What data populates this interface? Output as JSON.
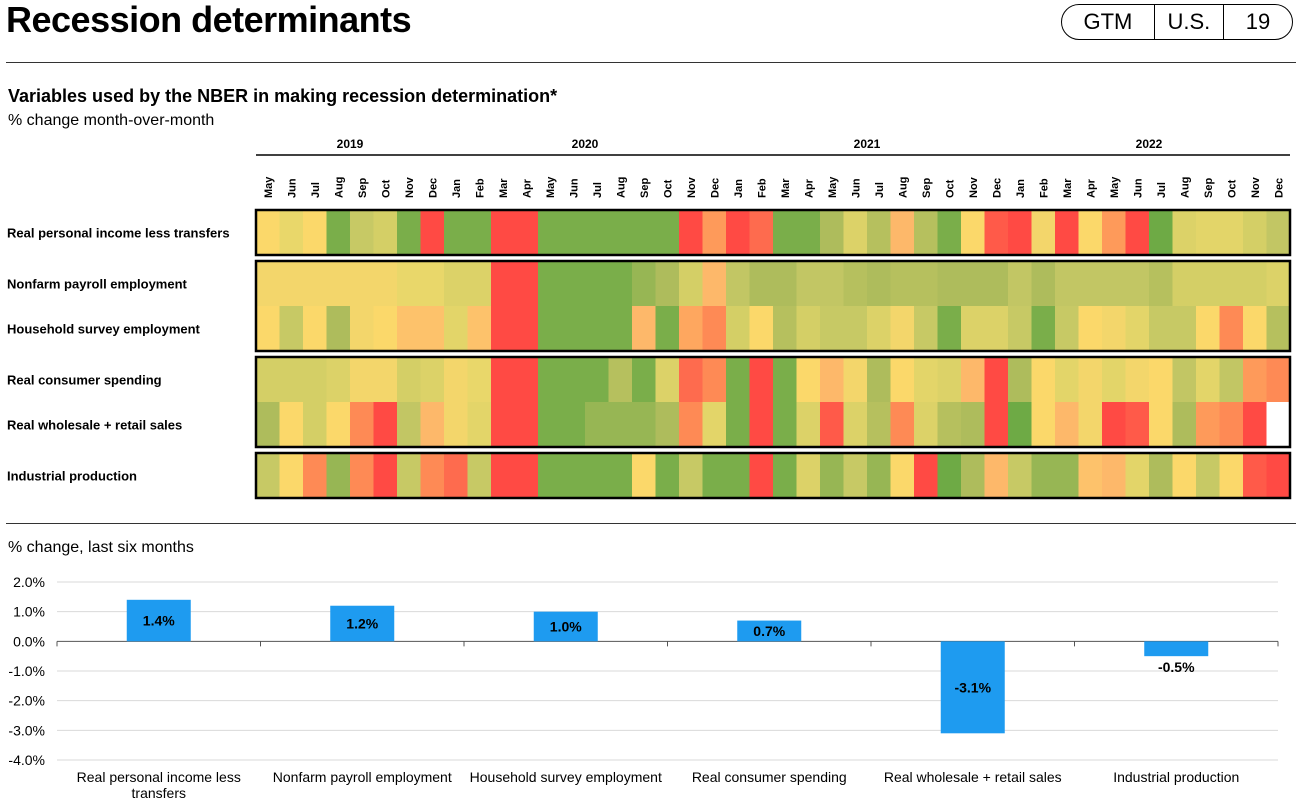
{
  "header": {
    "title": "Recession determinants",
    "badge": [
      "GTM",
      "U.S.",
      "19"
    ]
  },
  "heatmap": {
    "title": "Variables used by the NBER in making recession determination*",
    "unit": "% change month-over-month",
    "years": [
      {
        "label": "2019",
        "start": 0,
        "end": 7
      },
      {
        "label": "2020",
        "start": 8,
        "end": 19
      },
      {
        "label": "2021",
        "start": 20,
        "end": 31
      },
      {
        "label": "2022",
        "start": 32,
        "end": 43
      }
    ],
    "months": [
      "May",
      "Jun",
      "Jul",
      "Aug",
      "Sep",
      "Oct",
      "Nov",
      "Dec",
      "Jan",
      "Feb",
      "Mar",
      "Apr",
      "May",
      "Jun",
      "Jul",
      "Aug",
      "Sep",
      "Oct",
      "Nov",
      "Dec",
      "Jan",
      "Feb",
      "Mar",
      "Apr",
      "May",
      "Jun",
      "Jul",
      "Aug",
      "Sep",
      "Oct",
      "Nov",
      "Dec",
      "Jan",
      "Feb",
      "Mar",
      "Apr",
      "May",
      "Jun",
      "Jul",
      "Aug",
      "Sep",
      "Oct",
      "Nov",
      "Dec"
    ],
    "groups": [
      {
        "rows": [
          {
            "label": "Real personal income less transfers",
            "colors": [
              "#fbd86a",
              "#e9d76a",
              "#fbd86a",
              "#7aae4a",
              "#c7c965",
              "#d4cf66",
              "#7aae4a",
              "#ff4a44",
              "#7aae4a",
              "#7aae4a",
              "#ff4a44",
              "#ff4a44",
              "#7aae4a",
              "#7aae4a",
              "#7aae4a",
              "#7aae4a",
              "#7aae4a",
              "#7aae4a",
              "#ff4a44",
              "#fe9a5a",
              "#ff4a44",
              "#fe6b4e",
              "#7aae4a",
              "#7aae4a",
              "#aebc5c",
              "#dcd268",
              "#b6c05e",
              "#fdb86a",
              "#b6c05e",
              "#7aae4a",
              "#fbd86a",
              "#ff5a49",
              "#ff4a44",
              "#f3d66b",
              "#ff4a44",
              "#fbd86a",
              "#fe9a5a",
              "#ff4a44",
              "#6eaa45",
              "#dcd268",
              "#e3d569",
              "#e3d569",
              "#d4cf66",
              "#c2c664"
            ]
          }
        ]
      },
      {
        "rows": [
          {
            "label": "Nonfarm payroll employment",
            "colors": [
              "#f3d66b",
              "#f3d66b",
              "#f3d66b",
              "#f3d66b",
              "#f3d66b",
              "#f3d66b",
              "#e9d76a",
              "#e9d76a",
              "#dcd268",
              "#dcd268",
              "#ff4a44",
              "#ff4a44",
              "#7aae4a",
              "#7aae4a",
              "#7aae4a",
              "#7aae4a",
              "#97b654",
              "#aebc5c",
              "#d4cf66",
              "#fdb86a",
              "#c2c664",
              "#aebc5c",
              "#aebc5c",
              "#c2c664",
              "#c2c664",
              "#b6c05e",
              "#aebc5c",
              "#b6c05e",
              "#b6c05e",
              "#aebc5c",
              "#aebc5c",
              "#aebc5c",
              "#c2c664",
              "#aebc5c",
              "#c2c664",
              "#c2c664",
              "#c2c664",
              "#c2c664",
              "#b6c05e",
              "#d4cf66",
              "#d4cf66",
              "#d4cf66",
              "#d4cf66",
              "#dcd268"
            ]
          },
          {
            "label": "Household survey employment",
            "colors": [
              "#fbd86a",
              "#c7c965",
              "#fbd86a",
              "#aebc5c",
              "#f3d66b",
              "#fbd86a",
              "#fdc26b",
              "#fdc26b",
              "#e3d569",
              "#fdc26b",
              "#ff4a44",
              "#ff4a44",
              "#7aae4a",
              "#7aae4a",
              "#7aae4a",
              "#7aae4a",
              "#fdb86a",
              "#7aae4a",
              "#fea75f",
              "#fe8a55",
              "#d4cf66",
              "#fbd86a",
              "#b6c05e",
              "#d4cf66",
              "#c7c965",
              "#c7c965",
              "#dcd268",
              "#f3d66b",
              "#c7c965",
              "#7aae4a",
              "#dcd268",
              "#dcd268",
              "#c7c965",
              "#7aae4a",
              "#c7c965",
              "#fbd86a",
              "#f3d66b",
              "#e3d569",
              "#c7c965",
              "#c7c965",
              "#fbd86a",
              "#fe8a55",
              "#fbd86a",
              "#b6c05e"
            ]
          }
        ]
      },
      {
        "rows": [
          {
            "label": "Real consumer spending",
            "colors": [
              "#d4cf66",
              "#d4cf66",
              "#d4cf66",
              "#dcd268",
              "#f3d66b",
              "#f3d66b",
              "#d4cf66",
              "#dcd268",
              "#f3d66b",
              "#e9d76a",
              "#ff4a44",
              "#ff4a44",
              "#7aae4a",
              "#7aae4a",
              "#7aae4a",
              "#b6c05e",
              "#7aae4a",
              "#dcd268",
              "#fe6b4e",
              "#fe8a55",
              "#7aae4a",
              "#ff4a44",
              "#7aae4a",
              "#fbd86a",
              "#fdb86a",
              "#f3d66b",
              "#aebc5c",
              "#fbd86a",
              "#e3d569",
              "#dcd268",
              "#fdb86a",
              "#ff4a44",
              "#aebc5c",
              "#fbd86a",
              "#e3d569",
              "#f3d66b",
              "#e3d569",
              "#f3d66b",
              "#fbd86a",
              "#c2c664",
              "#e3d569",
              "#c2c664",
              "#fe9a5a",
              "#fe8a55"
            ]
          },
          {
            "label": "Real wholesale + retail sales",
            "colors": [
              "#aebc5c",
              "#fbd86a",
              "#d4cf66",
              "#fbd86a",
              "#fe8a55",
              "#ff4a44",
              "#c2c664",
              "#fdb86a",
              "#f3d66b",
              "#e3d569",
              "#ff4a44",
              "#ff4a44",
              "#7aae4a",
              "#7aae4a",
              "#97b654",
              "#97b654",
              "#97b654",
              "#aebc5c",
              "#fe8a55",
              "#e3d569",
              "#7aae4a",
              "#ff4a44",
              "#7aae4a",
              "#dcd268",
              "#ff5a49",
              "#dcd268",
              "#b6c05e",
              "#fe8a55",
              "#dcd268",
              "#b6c05e",
              "#aebc5c",
              "#ff4a44",
              "#6eaa45",
              "#fbd86a",
              "#fdb86a",
              "#f3d66b",
              "#ff4a44",
              "#ff5a49",
              "#fbd86a",
              "#aebc5c",
              "#fe9a5a",
              "#fe8a55",
              "#ff4a44",
              "#ffffff"
            ]
          }
        ]
      },
      {
        "rows": [
          {
            "label": "Industrial production",
            "colors": [
              "#c7c965",
              "#fbd86a",
              "#fe8a55",
              "#97b654",
              "#fe8a55",
              "#ff4a44",
              "#c7c965",
              "#fe8a55",
              "#fe6b4e",
              "#c7c965",
              "#ff4a44",
              "#ff4a44",
              "#7aae4a",
              "#7aae4a",
              "#7aae4a",
              "#7aae4a",
              "#fbd86a",
              "#7aae4a",
              "#c7c965",
              "#7aae4a",
              "#7aae4a",
              "#ff4a44",
              "#7aae4a",
              "#dcd268",
              "#97b654",
              "#c7c965",
              "#97b654",
              "#fbd86a",
              "#ff4a44",
              "#6eaa45",
              "#aebc5c",
              "#fdb86a",
              "#c7c965",
              "#97b654",
              "#97b654",
              "#fdc26b",
              "#fdb86a",
              "#e3d569",
              "#aebc5c",
              "#fbd86a",
              "#c7c965",
              "#fbd86a",
              "#ff5a49",
              "#ff4a44"
            ]
          }
        ]
      }
    ]
  },
  "chart_data": {
    "type": "bar",
    "unit_label": "% change, last six months",
    "categories": [
      "Real personal income less transfers",
      "Nonfarm payroll employment",
      "Household survey employment",
      "Real consumer spending",
      "Real wholesale + retail sales",
      "Industrial production"
    ],
    "values": [
      1.4,
      1.2,
      1.0,
      0.7,
      -3.1,
      -0.5
    ],
    "data_labels": [
      "1.4%",
      "1.2%",
      "1.0%",
      "0.7%",
      "-3.1%",
      "-0.5%"
    ],
    "ylim": [
      -4.0,
      2.0
    ],
    "yticks": [
      2.0,
      1.0,
      0.0,
      -1.0,
      -2.0,
      -3.0,
      -4.0
    ],
    "ytick_labels": [
      "2.0%",
      "1.0%",
      "0.0%",
      "-1.0%",
      "-2.0%",
      "-3.0%",
      "-4.0%"
    ],
    "bar_color": "#1e9bf0",
    "grid": true
  }
}
